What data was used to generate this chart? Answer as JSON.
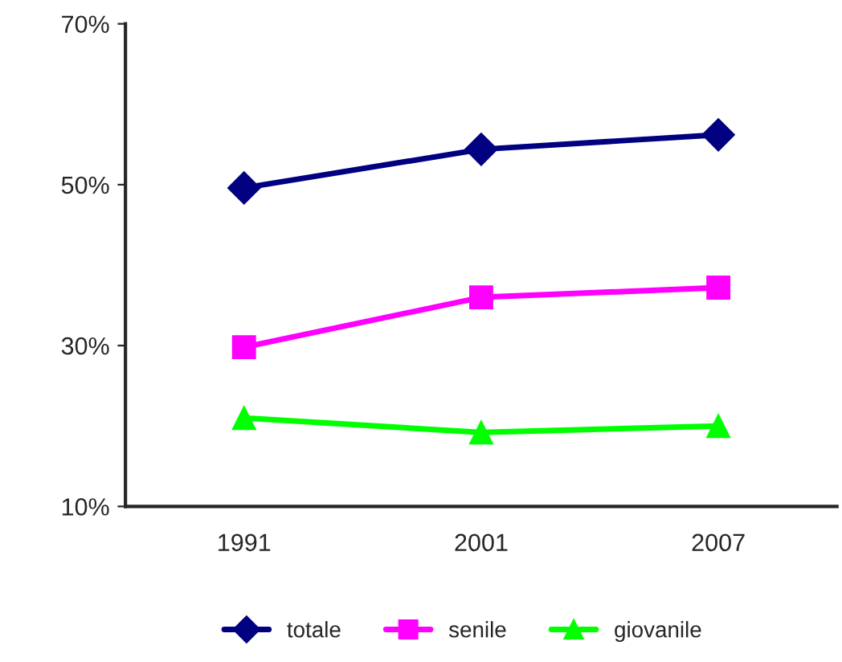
{
  "chart_data": {
    "type": "line",
    "categories": [
      "1991",
      "2001",
      "2007"
    ],
    "series": [
      {
        "name": "totale",
        "color": "#000080",
        "marker": "diamond",
        "values": [
          49.6,
          54.4,
          56.2
        ]
      },
      {
        "name": "senile",
        "color": "#ff00ff",
        "marker": "square",
        "values": [
          29.8,
          36.0,
          37.2
        ]
      },
      {
        "name": "giovanile",
        "color": "#00ff00",
        "marker": "triangle",
        "values": [
          21.0,
          19.2,
          20.0
        ]
      }
    ],
    "ylim": [
      10,
      70
    ],
    "yticks": [
      {
        "value": 10,
        "label": "10%"
      },
      {
        "value": 30,
        "label": "30%"
      },
      {
        "value": 50,
        "label": "50%"
      },
      {
        "value": 70,
        "label": "70%"
      }
    ],
    "grid": false,
    "legend": "bottom",
    "line_style": "solid"
  }
}
